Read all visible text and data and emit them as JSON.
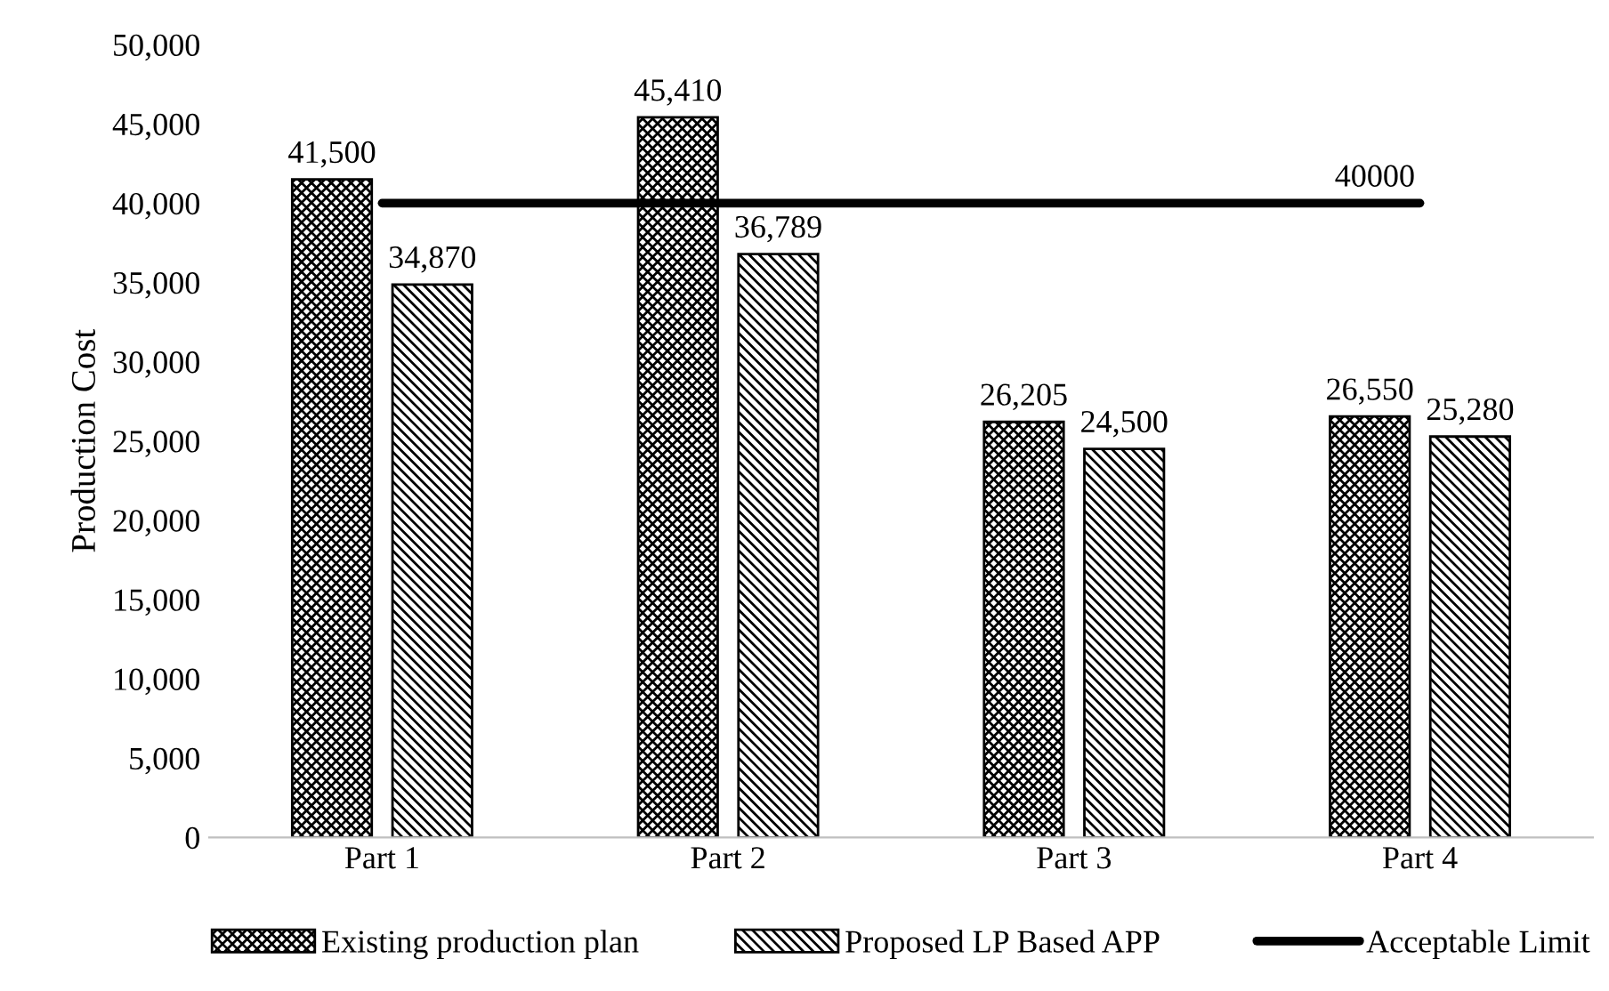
{
  "chart_data": {
    "type": "bar",
    "ylabel": "Production Cost",
    "categories": [
      "Part 1",
      "Part 2",
      "Part 3",
      "Part 4"
    ],
    "series": [
      {
        "name": "Existing production plan",
        "color": "#000000",
        "values": [
          41500,
          45410,
          26205,
          26550
        ],
        "value_labels": [
          "41,500",
          "45,410",
          "26,205",
          "26,550"
        ]
      },
      {
        "name": "Proposed LP Based APP",
        "color": "#000000",
        "values": [
          34870,
          36789,
          24500,
          25280
        ],
        "value_labels": [
          "34,870",
          "36,789",
          "24,500",
          "25,280"
        ]
      },
      {
        "name": "Acceptable Limit",
        "type": "line",
        "color": "#000000",
        "values": [
          40000,
          40000,
          40000,
          40000
        ],
        "value_labels": [
          null,
          null,
          null,
          "40000"
        ]
      }
    ],
    "ylim": [
      0,
      50000
    ],
    "yticks": [
      {
        "value": 0,
        "label": "0"
      },
      {
        "value": 5000,
        "label": "5,000"
      },
      {
        "value": 10000,
        "label": "10,000"
      },
      {
        "value": 15000,
        "label": "15,000"
      },
      {
        "value": 20000,
        "label": "20,000"
      },
      {
        "value": 25000,
        "label": "25,000"
      },
      {
        "value": 30000,
        "label": "30,000"
      },
      {
        "value": 35000,
        "label": "35,000"
      },
      {
        "value": 40000,
        "label": "40,000"
      },
      {
        "value": 45000,
        "label": "45,000"
      },
      {
        "value": 50000,
        "label": "50,000"
      }
    ],
    "grid": false,
    "legend": "bottom"
  }
}
